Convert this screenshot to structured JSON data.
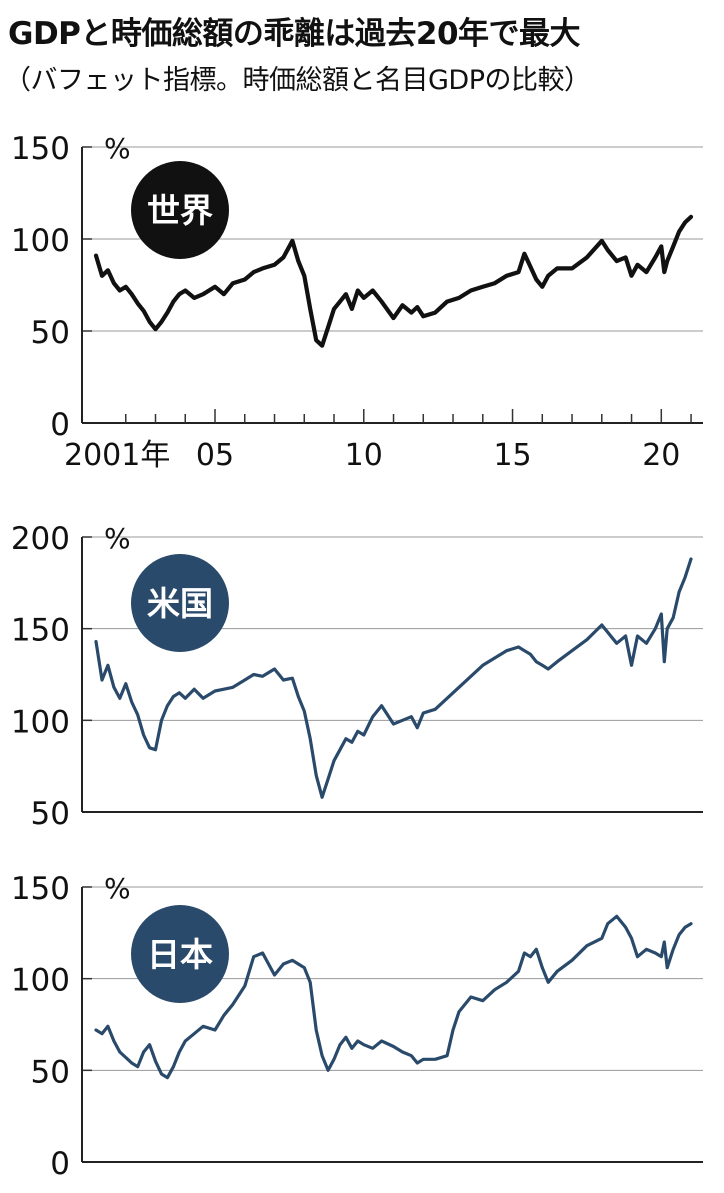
{
  "title": "GDPと時価総額の乖離は過去20年で最大",
  "subtitle": "（バフェット指標。時価総額と名目GDPの比較）",
  "colors": {
    "world": "#111111",
    "us": "#2a4a6b",
    "japan": "#2a4a6b",
    "grid": "#999999"
  },
  "chart_data": [
    {
      "type": "line",
      "badge": "世界",
      "unit": "%",
      "ylim": [
        0,
        150
      ],
      "yticks": [
        "0",
        "50",
        "100",
        "150"
      ],
      "xlim": [
        2001,
        2021.2
      ],
      "xtick_labels": [
        {
          "x": 2001,
          "label": "2001年"
        },
        {
          "x": 2005,
          "label": "05"
        },
        {
          "x": 2010,
          "label": "10"
        },
        {
          "x": 2015,
          "label": "15"
        },
        {
          "x": 2020,
          "label": "20"
        }
      ],
      "grid": true,
      "x": [
        2001.0,
        2001.2,
        2001.4,
        2001.6,
        2001.8,
        2002.0,
        2002.2,
        2002.4,
        2002.6,
        2002.8,
        2003.0,
        2003.2,
        2003.4,
        2003.6,
        2003.8,
        2004.0,
        2004.3,
        2004.6,
        2005.0,
        2005.3,
        2005.6,
        2006.0,
        2006.3,
        2006.6,
        2007.0,
        2007.3,
        2007.6,
        2007.8,
        2008.0,
        2008.2,
        2008.4,
        2008.6,
        2008.8,
        2009.0,
        2009.2,
        2009.4,
        2009.6,
        2009.8,
        2010.0,
        2010.3,
        2010.6,
        2011.0,
        2011.3,
        2011.6,
        2011.8,
        2012.0,
        2012.4,
        2012.8,
        2013.2,
        2013.6,
        2014.0,
        2014.4,
        2014.8,
        2015.2,
        2015.4,
        2015.6,
        2015.8,
        2016.0,
        2016.2,
        2016.5,
        2017.0,
        2017.5,
        2018.0,
        2018.2,
        2018.5,
        2018.8,
        2019.0,
        2019.2,
        2019.5,
        2019.8,
        2020.0,
        2020.1,
        2020.2,
        2020.4,
        2020.6,
        2020.8,
        2021.0
      ],
      "y": [
        91,
        80,
        83,
        76,
        72,
        74,
        70,
        65,
        61,
        55,
        51,
        55,
        60,
        66,
        70,
        72,
        68,
        70,
        74,
        70,
        76,
        78,
        82,
        84,
        86,
        90,
        99,
        88,
        80,
        62,
        45,
        42,
        52,
        62,
        66,
        70,
        62,
        72,
        68,
        72,
        66,
        57,
        64,
        60,
        63,
        58,
        60,
        66,
        68,
        72,
        74,
        76,
        80,
        82,
        92,
        85,
        78,
        74,
        80,
        84,
        84,
        90,
        99,
        94,
        88,
        90,
        80,
        86,
        82,
        90,
        96,
        82,
        88,
        96,
        104,
        109,
        112
      ]
    },
    {
      "type": "line",
      "badge": "米国",
      "unit": "%",
      "ylim": [
        50,
        200
      ],
      "yticks": [
        "50",
        "100",
        "150",
        "200"
      ],
      "xlim": [
        2001,
        2021.2
      ],
      "grid": true,
      "x": [
        2001.0,
        2001.2,
        2001.4,
        2001.6,
        2001.8,
        2002.0,
        2002.2,
        2002.4,
        2002.6,
        2002.8,
        2003.0,
        2003.2,
        2003.4,
        2003.6,
        2003.8,
        2004.0,
        2004.3,
        2004.6,
        2005.0,
        2005.3,
        2005.6,
        2006.0,
        2006.3,
        2006.6,
        2007.0,
        2007.3,
        2007.6,
        2007.8,
        2008.0,
        2008.2,
        2008.4,
        2008.6,
        2008.8,
        2009.0,
        2009.2,
        2009.4,
        2009.6,
        2009.8,
        2010.0,
        2010.3,
        2010.6,
        2011.0,
        2011.3,
        2011.6,
        2011.8,
        2012.0,
        2012.4,
        2012.8,
        2013.2,
        2013.6,
        2014.0,
        2014.4,
        2014.8,
        2015.2,
        2015.4,
        2015.6,
        2015.8,
        2016.0,
        2016.2,
        2016.5,
        2017.0,
        2017.5,
        2018.0,
        2018.2,
        2018.5,
        2018.8,
        2019.0,
        2019.2,
        2019.5,
        2019.8,
        2020.0,
        2020.1,
        2020.2,
        2020.4,
        2020.6,
        2020.8,
        2021.0
      ],
      "y": [
        143,
        122,
        130,
        118,
        112,
        120,
        110,
        103,
        92,
        85,
        84,
        100,
        108,
        113,
        115,
        112,
        117,
        112,
        116,
        117,
        118,
        122,
        125,
        124,
        128,
        122,
        123,
        113,
        105,
        90,
        70,
        58,
        68,
        78,
        84,
        90,
        88,
        94,
        92,
        102,
        108,
        98,
        100,
        102,
        96,
        104,
        106,
        112,
        118,
        124,
        130,
        134,
        138,
        140,
        138,
        136,
        132,
        130,
        128,
        132,
        138,
        144,
        152,
        148,
        142,
        146,
        130,
        146,
        142,
        150,
        158,
        132,
        150,
        156,
        170,
        178,
        188
      ]
    },
    {
      "type": "line",
      "badge": "日本",
      "unit": "%",
      "ylim": [
        0,
        150
      ],
      "yticks": [
        "0",
        "50",
        "100",
        "150"
      ],
      "xlim": [
        2001,
        2021.2
      ],
      "grid": true,
      "x": [
        2001.0,
        2001.2,
        2001.4,
        2001.6,
        2001.8,
        2002.0,
        2002.2,
        2002.4,
        2002.6,
        2002.8,
        2003.0,
        2003.2,
        2003.4,
        2003.6,
        2003.8,
        2004.0,
        2004.3,
        2004.6,
        2005.0,
        2005.3,
        2005.6,
        2006.0,
        2006.3,
        2006.6,
        2007.0,
        2007.3,
        2007.6,
        2007.8,
        2008.0,
        2008.2,
        2008.4,
        2008.6,
        2008.8,
        2009.0,
        2009.2,
        2009.4,
        2009.6,
        2009.8,
        2010.0,
        2010.3,
        2010.6,
        2011.0,
        2011.3,
        2011.6,
        2011.8,
        2012.0,
        2012.4,
        2012.8,
        2013.0,
        2013.2,
        2013.6,
        2014.0,
        2014.4,
        2014.8,
        2015.2,
        2015.4,
        2015.6,
        2015.8,
        2016.0,
        2016.2,
        2016.5,
        2017.0,
        2017.5,
        2018.0,
        2018.2,
        2018.5,
        2018.8,
        2019.0,
        2019.2,
        2019.5,
        2019.8,
        2020.0,
        2020.1,
        2020.2,
        2020.4,
        2020.6,
        2020.8,
        2021.0
      ],
      "y": [
        72,
        70,
        74,
        66,
        60,
        57,
        54,
        52,
        60,
        64,
        55,
        48,
        46,
        52,
        60,
        66,
        70,
        74,
        72,
        80,
        86,
        96,
        112,
        114,
        102,
        108,
        110,
        108,
        106,
        98,
        72,
        58,
        50,
        56,
        64,
        68,
        62,
        66,
        64,
        62,
        66,
        63,
        60,
        58,
        54,
        56,
        56,
        58,
        72,
        82,
        90,
        88,
        94,
        98,
        104,
        114,
        112,
        116,
        106,
        98,
        104,
        110,
        118,
        122,
        130,
        134,
        128,
        122,
        112,
        116,
        114,
        112,
        120,
        106,
        116,
        124,
        128,
        130
      ]
    }
  ]
}
